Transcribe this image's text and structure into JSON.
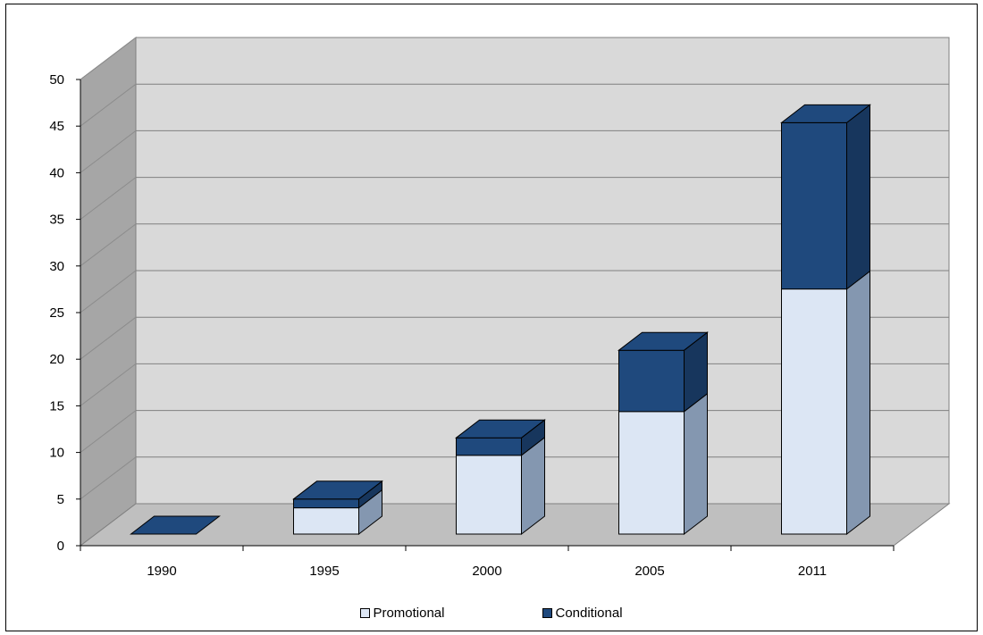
{
  "chart_data": {
    "type": "bar",
    "stacked": true,
    "three_d": true,
    "categories": [
      "1990",
      "1995",
      "2000",
      "2005",
      "2011"
    ],
    "series": [
      {
        "name": "Promotional",
        "color": "#dce6f4",
        "values": [
          0,
          3,
          9,
          14,
          28
        ]
      },
      {
        "name": "Conditional",
        "color": "#1f497d",
        "values": [
          0,
          1,
          2,
          7,
          19
        ]
      }
    ],
    "yticks": [
      "0",
      "5",
      "10",
      "15",
      "20",
      "25",
      "30",
      "35",
      "40",
      "45",
      "50"
    ],
    "ylim": [
      0,
      50
    ],
    "grid": true,
    "legend_position": "bottom"
  }
}
